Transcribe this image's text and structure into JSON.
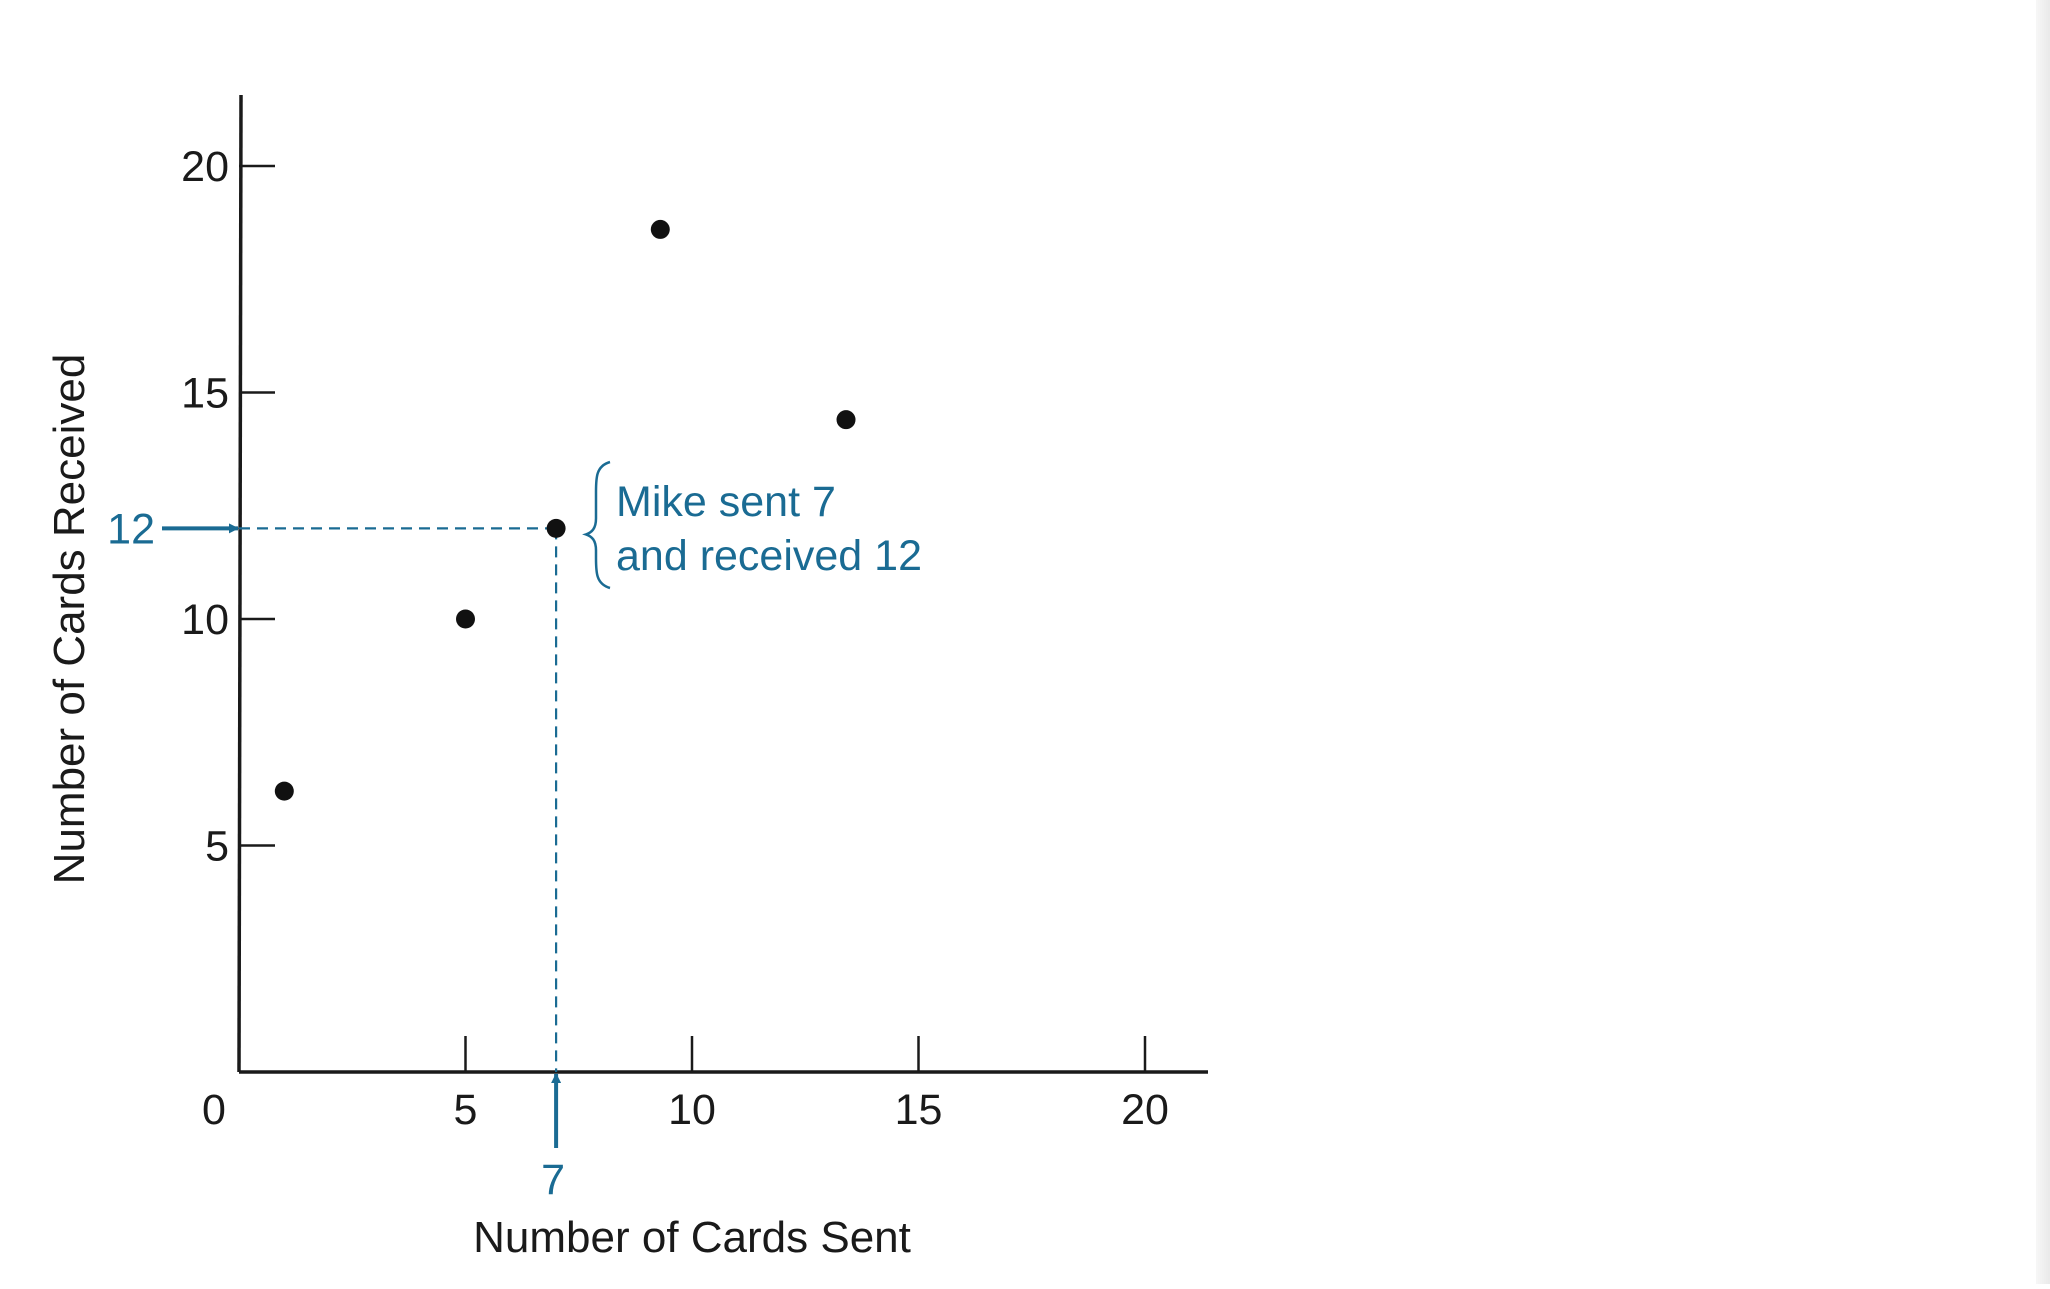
{
  "chart_data": {
    "type": "scatter",
    "title": "",
    "xlabel": "Number of Cards Sent",
    "ylabel": "Number of Cards Received",
    "xlim": [
      0,
      21
    ],
    "ylim": [
      0,
      21
    ],
    "xticks": [
      5,
      10,
      15,
      20
    ],
    "yticks": [
      5,
      10,
      15,
      20
    ],
    "origin_label": "0",
    "grid": false,
    "series": [
      {
        "points": [
          {
            "x": 1,
            "y": 6.2
          },
          {
            "x": 5,
            "y": 10
          },
          {
            "x": 7,
            "y": 12
          },
          {
            "x": 9.3,
            "y": 18.6
          },
          {
            "x": 13.4,
            "y": 14.4
          }
        ]
      }
    ],
    "highlight": {
      "x": 7,
      "y": 12,
      "x_label": "7",
      "y_label": "12",
      "annotation": [
        "Mike sent 7",
        "and received 12"
      ]
    },
    "colors": {
      "axis": "#1a1a1a",
      "points": "#111111",
      "highlight": "#1a6b93"
    }
  }
}
